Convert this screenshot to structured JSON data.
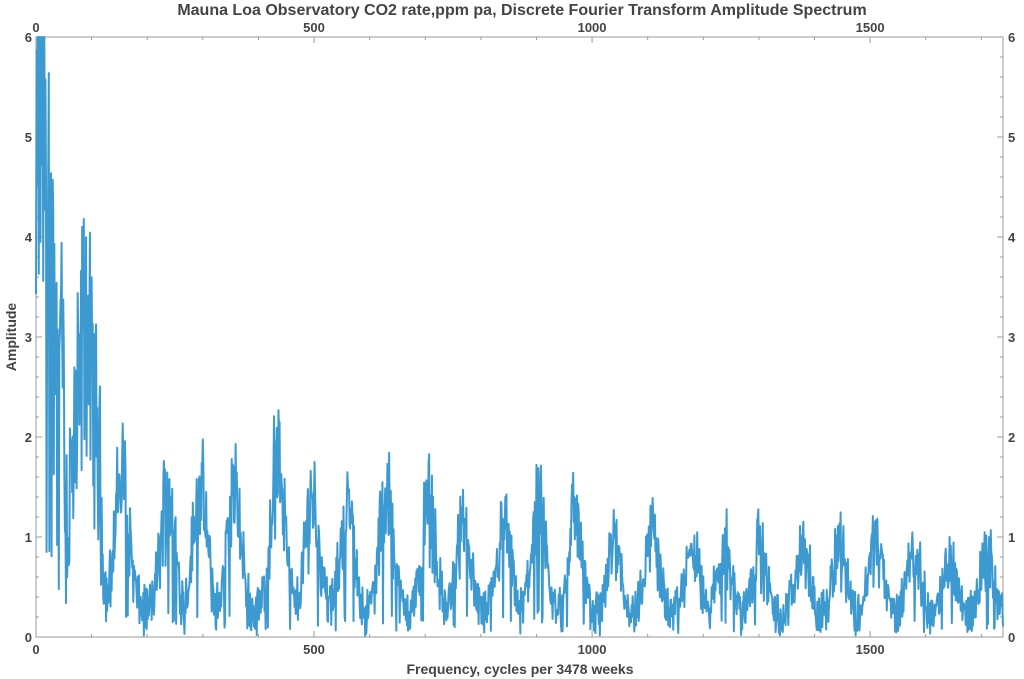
{
  "chart_data": {
    "type": "line",
    "title": "Mauna Loa Observatory CO2 rate,ppm pa, Discrete Fourier Transform Amplitude Spectrum",
    "xlabel": "Frequency, cycles per 3478 weeks",
    "ylabel": "Amplitude",
    "xlim": [
      0,
      1739
    ],
    "ylim": [
      0,
      6
    ],
    "x_ticks": [
      0,
      500,
      1000,
      1500
    ],
    "y_ticks": [
      0,
      1,
      2,
      3,
      4,
      5,
      6
    ],
    "x_tick_labels": [
      "0",
      "500",
      "1000",
      "1500"
    ],
    "y_tick_labels": [
      "0",
      "1",
      "2",
      "3",
      "4",
      "5",
      "6"
    ],
    "grid": false,
    "legend": "none",
    "series": [
      {
        "color": "#3d9ad1",
        "x_step": 1,
        "x_start": 0,
        "x_end": 1739,
        "peaks": [
          {
            "x": 4,
            "y": 5.4
          },
          {
            "x": 10,
            "y": 6.0
          },
          {
            "x": 14,
            "y": 4.4
          },
          {
            "x": 17,
            "y": 5.2
          },
          {
            "x": 22,
            "y": 6.0
          },
          {
            "x": 28,
            "y": 3.5
          },
          {
            "x": 35,
            "y": 2.5
          },
          {
            "x": 46,
            "y": 3.75
          },
          {
            "x": 90,
            "y": 2.95
          },
          {
            "x": 100,
            "y": 2.3
          },
          {
            "x": 155,
            "y": 1.85
          },
          {
            "x": 237,
            "y": 1.65
          },
          {
            "x": 295,
            "y": 1.65
          },
          {
            "x": 356,
            "y": 1.6
          },
          {
            "x": 435,
            "y": 2.12
          },
          {
            "x": 497,
            "y": 1.6
          },
          {
            "x": 560,
            "y": 1.4
          },
          {
            "x": 630,
            "y": 1.6
          },
          {
            "x": 706,
            "y": 1.5
          },
          {
            "x": 768,
            "y": 1.25
          },
          {
            "x": 842,
            "y": 1.15
          },
          {
            "x": 903,
            "y": 1.45
          },
          {
            "x": 970,
            "y": 1.4
          },
          {
            "x": 1040,
            "y": 1.05
          },
          {
            "x": 1108,
            "y": 1.2
          },
          {
            "x": 1180,
            "y": 0.9
          },
          {
            "x": 1238,
            "y": 1.0
          },
          {
            "x": 1300,
            "y": 0.95
          },
          {
            "x": 1378,
            "y": 0.95
          },
          {
            "x": 1445,
            "y": 1.0
          },
          {
            "x": 1510,
            "y": 1.05
          },
          {
            "x": 1578,
            "y": 0.9
          },
          {
            "x": 1645,
            "y": 0.8
          },
          {
            "x": 1710,
            "y": 0.85
          }
        ],
        "baseline": {
          "near_zero": 0.35,
          "far": 0.25
        }
      }
    ]
  }
}
